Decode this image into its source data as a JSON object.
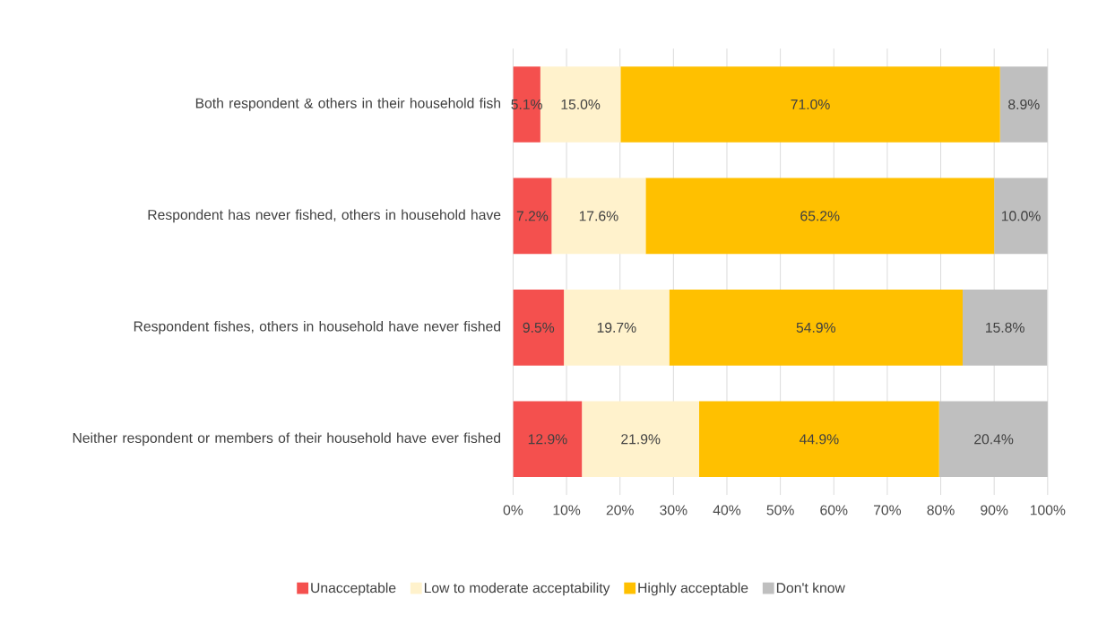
{
  "chart_data": {
    "type": "bar",
    "orientation": "horizontal",
    "stacked": true,
    "categories": [
      "Both respondent & others in their household fish",
      "Respondent has never fished, others in household have",
      "Respondent fishes, others in household have never fished",
      "Neither respondent or members of their household have ever fished"
    ],
    "series": [
      {
        "name": "Unacceptable",
        "color": "#f4504e",
        "values": [
          5.1,
          7.2,
          9.5,
          12.9
        ],
        "value_labels": [
          "5.1%",
          "7.2%",
          "9.5%",
          "12.9%"
        ]
      },
      {
        "name": "Low to moderate acceptability",
        "color": "#fff2cc",
        "values": [
          15.0,
          17.6,
          19.7,
          21.9
        ],
        "value_labels": [
          "15.0%",
          "17.6%",
          "19.7%",
          "21.9%"
        ]
      },
      {
        "name": "Highly acceptable",
        "color": "#ffc000",
        "values": [
          71.0,
          65.2,
          54.9,
          44.9
        ],
        "value_labels": [
          "71.0%",
          "65.2%",
          "54.9%",
          "44.9%"
        ]
      },
      {
        "name": "Don't know",
        "color": "#bfbfbf",
        "values": [
          8.9,
          10.0,
          15.8,
          20.4
        ],
        "value_labels": [
          "8.9%",
          "10.0%",
          "15.8%",
          "20.4%"
        ]
      }
    ],
    "xlim": [
      0,
      100
    ],
    "xticks": [
      {
        "value": 0,
        "label": "0%"
      },
      {
        "value": 10,
        "label": "10%"
      },
      {
        "value": 20,
        "label": "20%"
      },
      {
        "value": 30,
        "label": "30%"
      },
      {
        "value": 40,
        "label": "40%"
      },
      {
        "value": 50,
        "label": "50%"
      },
      {
        "value": 60,
        "label": "60%"
      },
      {
        "value": 70,
        "label": "70%"
      },
      {
        "value": 80,
        "label": "80%"
      },
      {
        "value": 90,
        "label": "90%"
      },
      {
        "value": 100,
        "label": "100%"
      }
    ],
    "grid": "x",
    "legend": "bottom"
  }
}
